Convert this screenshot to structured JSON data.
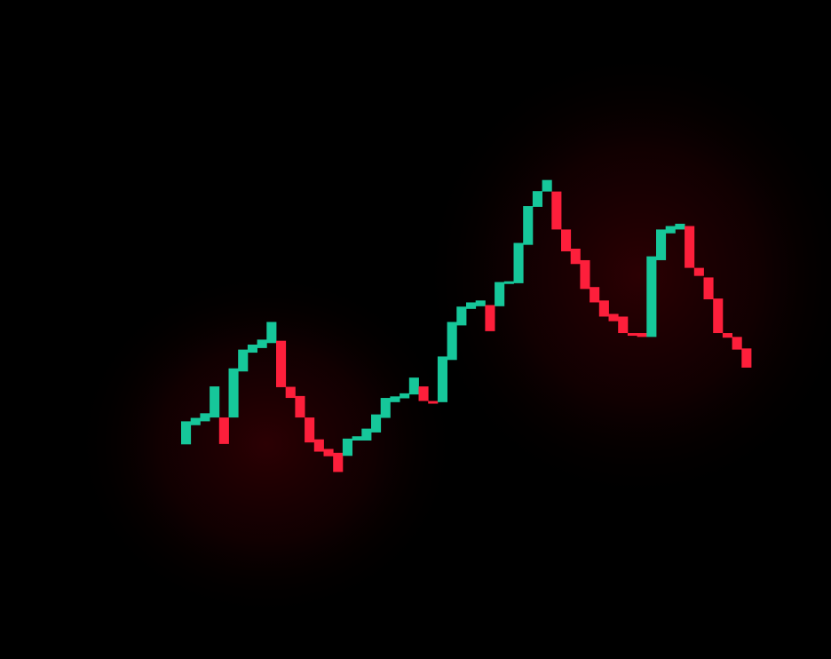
{
  "chart_data": {
    "type": "candlestick",
    "title": "",
    "xlabel": "",
    "ylabel": "",
    "grid": false,
    "legend": "none",
    "colors": {
      "background": "#000000",
      "up": "#16c79a",
      "down": "#fd1f3b",
      "glow": "#3a0004"
    },
    "ylim": [
      0,
      100
    ],
    "candles": [
      {
        "open": 24.0,
        "close": 30.0,
        "dir": "up"
      },
      {
        "open": 29.0,
        "close": 30.9,
        "dir": "up"
      },
      {
        "open": 30.0,
        "close": 32.1,
        "dir": "up"
      },
      {
        "open": 31.0,
        "close": 39.1,
        "dir": "up"
      },
      {
        "open": 31.0,
        "close": 24.1,
        "dir": "down"
      },
      {
        "open": 31.0,
        "close": 43.8,
        "dir": "up"
      },
      {
        "open": 43.0,
        "close": 48.7,
        "dir": "up"
      },
      {
        "open": 47.9,
        "close": 50.0,
        "dir": "up"
      },
      {
        "open": 49.1,
        "close": 51.3,
        "dir": "up"
      },
      {
        "open": 50.4,
        "close": 55.9,
        "dir": "up"
      },
      {
        "open": 51.0,
        "close": 38.9,
        "dir": "down"
      },
      {
        "open": 39.0,
        "close": 36.1,
        "dir": "down"
      },
      {
        "open": 36.6,
        "close": 31.0,
        "dir": "down"
      },
      {
        "open": 31.0,
        "close": 24.5,
        "dir": "down"
      },
      {
        "open": 25.3,
        "close": 22.1,
        "dir": "down"
      },
      {
        "open": 22.8,
        "close": 20.9,
        "dir": "down"
      },
      {
        "open": 21.8,
        "close": 16.8,
        "dir": "down"
      },
      {
        "open": 21.0,
        "close": 25.5,
        "dir": "up"
      },
      {
        "open": 25.0,
        "close": 26.1,
        "dir": "up"
      },
      {
        "open": 25.0,
        "close": 28.1,
        "dir": "up"
      },
      {
        "open": 27.1,
        "close": 31.8,
        "dir": "up"
      },
      {
        "open": 30.9,
        "close": 36.1,
        "dir": "up"
      },
      {
        "open": 35.0,
        "close": 36.5,
        "dir": "up"
      },
      {
        "open": 36.0,
        "close": 37.3,
        "dir": "up"
      },
      {
        "open": 37.0,
        "close": 41.4,
        "dir": "up"
      },
      {
        "open": 39.1,
        "close": 35.3,
        "dir": "down"
      },
      {
        "open": 35.3,
        "close": 35.0,
        "dir": "down"
      },
      {
        "open": 35.0,
        "close": 46.9,
        "dir": "up"
      },
      {
        "open": 46.0,
        "close": 55.9,
        "dir": "up"
      },
      {
        "open": 55.0,
        "close": 59.9,
        "dir": "up"
      },
      {
        "open": 59.3,
        "close": 61.0,
        "dir": "up"
      },
      {
        "open": 60.0,
        "close": 61.5,
        "dir": "up"
      },
      {
        "open": 60.3,
        "close": 53.5,
        "dir": "down"
      },
      {
        "open": 60.0,
        "close": 66.3,
        "dir": "up"
      },
      {
        "open": 66.0,
        "close": 66.5,
        "dir": "up"
      },
      {
        "open": 66.0,
        "close": 76.5,
        "dir": "up"
      },
      {
        "open": 76.0,
        "close": 86.1,
        "dir": "up"
      },
      {
        "open": 85.9,
        "close": 90.0,
        "dir": "up"
      },
      {
        "open": 89.9,
        "close": 92.9,
        "dir": "up"
      },
      {
        "open": 89.9,
        "close": 80.0,
        "dir": "down"
      },
      {
        "open": 80.0,
        "close": 74.3,
        "dir": "down"
      },
      {
        "open": 75.0,
        "close": 71.0,
        "dir": "down"
      },
      {
        "open": 72.0,
        "close": 64.5,
        "dir": "down"
      },
      {
        "open": 65.0,
        "close": 61.0,
        "dir": "down"
      },
      {
        "open": 61.5,
        "close": 57.3,
        "dir": "down"
      },
      {
        "open": 58.0,
        "close": 56.1,
        "dir": "down"
      },
      {
        "open": 57.3,
        "close": 53.0,
        "dir": "down"
      },
      {
        "open": 53.0,
        "close": 52.5,
        "dir": "down"
      },
      {
        "open": 53.0,
        "close": 52.0,
        "dir": "down"
      },
      {
        "open": 52.0,
        "close": 73.0,
        "dir": "up"
      },
      {
        "open": 72.0,
        "close": 80.0,
        "dir": "up"
      },
      {
        "open": 79.0,
        "close": 80.9,
        "dir": "up"
      },
      {
        "open": 80.0,
        "close": 81.5,
        "dir": "up"
      },
      {
        "open": 80.9,
        "close": 70.0,
        "dir": "down"
      },
      {
        "open": 70.0,
        "close": 67.9,
        "dir": "down"
      },
      {
        "open": 67.5,
        "close": 61.8,
        "dir": "down"
      },
      {
        "open": 62.0,
        "close": 53.0,
        "dir": "down"
      },
      {
        "open": 53.0,
        "close": 51.8,
        "dir": "down"
      },
      {
        "open": 52.0,
        "close": 48.7,
        "dir": "down"
      },
      {
        "open": 49.0,
        "close": 44.0,
        "dir": "down"
      }
    ]
  }
}
